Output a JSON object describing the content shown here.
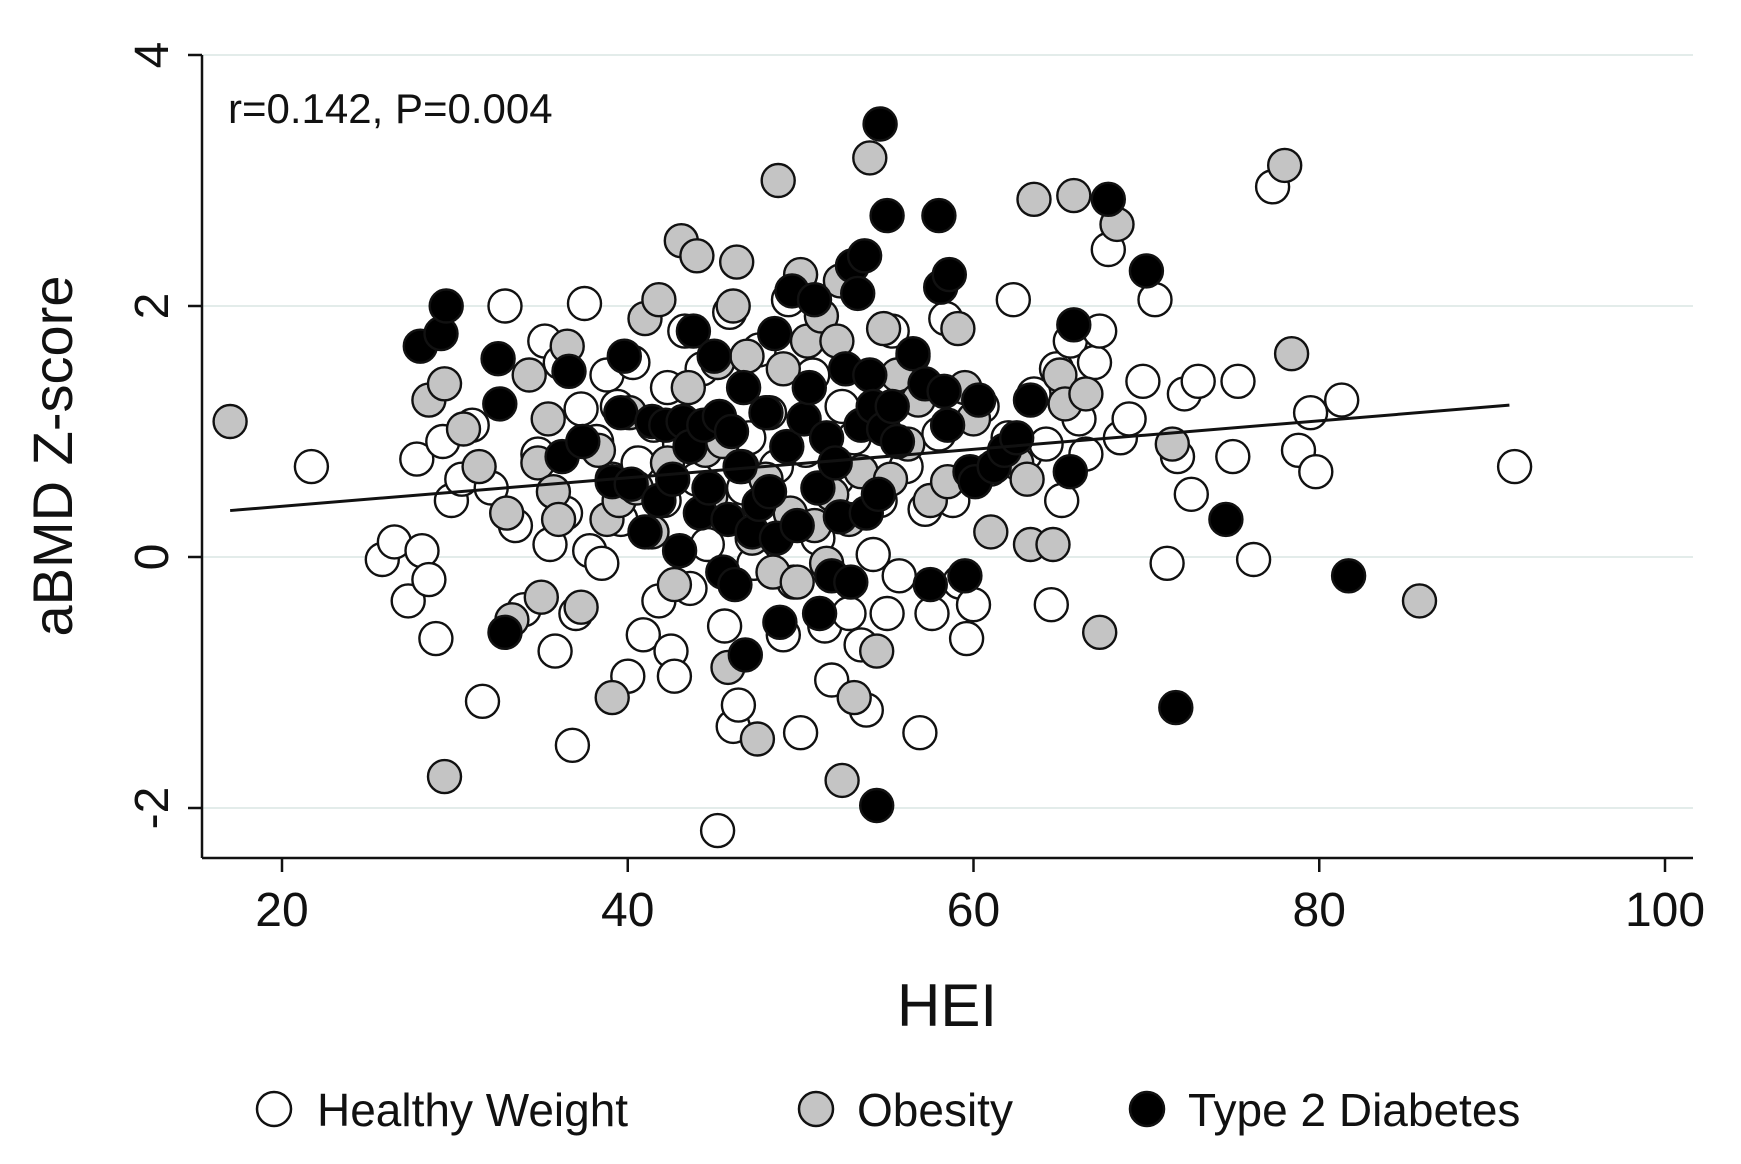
{
  "chart_data": {
    "type": "scatter",
    "xlabel": "HEI",
    "ylabel": "aBMD Z-score",
    "xlim": [
      16,
      102
    ],
    "ylim": [
      -2.4,
      4.1
    ],
    "xticks": [
      20,
      40,
      60,
      80,
      100
    ],
    "yticks": [
      -2,
      0,
      2,
      4
    ],
    "grid": true,
    "annotation": "r=0.142, P=0.004",
    "legend_position": "bottom",
    "trendline": {
      "x": [
        17,
        91
      ],
      "y": [
        0.37,
        1.21
      ]
    },
    "series": [
      {
        "name": "Healthy Weight",
        "color": "#ffffff",
        "points": [
          [
            21.7,
            0.72
          ],
          [
            25.8,
            -0.02
          ],
          [
            26.5,
            0.12
          ],
          [
            27.3,
            -0.35
          ],
          [
            27.8,
            0.78
          ],
          [
            28.1,
            0.05
          ],
          [
            28.5,
            -0.18
          ],
          [
            28.9,
            -0.65
          ],
          [
            29.3,
            0.92
          ],
          [
            29.8,
            0.45
          ],
          [
            30.4,
            0.62
          ],
          [
            31.0,
            1.05
          ],
          [
            31.6,
            -1.15
          ],
          [
            32.1,
            0.55
          ],
          [
            32.9,
            2.0
          ],
          [
            33.5,
            0.25
          ],
          [
            34.0,
            -0.42
          ],
          [
            34.8,
            0.82
          ],
          [
            35.2,
            1.72
          ],
          [
            35.5,
            0.1
          ],
          [
            35.8,
            -0.75
          ],
          [
            36.1,
            1.55
          ],
          [
            36.4,
            0.35
          ],
          [
            36.8,
            -1.5
          ],
          [
            37.0,
            -0.45
          ],
          [
            37.3,
            1.18
          ],
          [
            37.5,
            2.02
          ],
          [
            37.8,
            0.05
          ],
          [
            38.2,
            0.92
          ],
          [
            38.5,
            -0.05
          ],
          [
            38.8,
            1.45
          ],
          [
            39.1,
            0.62
          ],
          [
            39.4,
            1.2
          ],
          [
            39.6,
            0.3
          ],
          [
            40.0,
            -0.95
          ],
          [
            40.3,
            1.55
          ],
          [
            40.6,
            0.75
          ],
          [
            40.9,
            -0.62
          ],
          [
            41.2,
            0.2
          ],
          [
            41.5,
            1.05
          ],
          [
            41.8,
            -0.35
          ],
          [
            42.1,
            0.45
          ],
          [
            42.3,
            1.35
          ],
          [
            42.5,
            -0.75
          ],
          [
            42.7,
            -0.95
          ],
          [
            43.0,
            0.9
          ],
          [
            43.3,
            1.8
          ],
          [
            43.6,
            -0.25
          ],
          [
            44.0,
            0.62
          ],
          [
            44.3,
            1.5
          ],
          [
            44.6,
            0.1
          ],
          [
            44.9,
            1.05
          ],
          [
            45.2,
            -2.18
          ],
          [
            45.6,
            -0.55
          ],
          [
            45.9,
            1.95
          ],
          [
            46.1,
            -1.35
          ],
          [
            46.4,
            -1.18
          ],
          [
            46.7,
            0.55
          ],
          [
            47.0,
            0.95
          ],
          [
            47.3,
            -0.05
          ],
          [
            47.6,
            1.65
          ],
          [
            47.9,
            0.3
          ],
          [
            48.2,
            1.15
          ],
          [
            48.6,
            0.72
          ],
          [
            49.0,
            -0.62
          ],
          [
            49.3,
            2.05
          ],
          [
            49.6,
            -0.2
          ],
          [
            50.0,
            -1.4
          ],
          [
            50.3,
            0.85
          ],
          [
            50.7,
            1.45
          ],
          [
            51.0,
            0.15
          ],
          [
            51.4,
            -0.55
          ],
          [
            51.8,
            -0.98
          ],
          [
            52.1,
            0.62
          ],
          [
            52.4,
            1.2
          ],
          [
            52.8,
            -0.45
          ],
          [
            53.1,
            0.95
          ],
          [
            53.5,
            -0.7
          ],
          [
            53.8,
            -1.22
          ],
          [
            54.2,
            0.02
          ],
          [
            54.6,
            0.45
          ],
          [
            55.0,
            -0.45
          ],
          [
            55.3,
            1.8
          ],
          [
            55.7,
            -0.15
          ],
          [
            56.1,
            0.72
          ],
          [
            56.5,
            1.6
          ],
          [
            56.9,
            -1.4
          ],
          [
            57.2,
            0.38
          ],
          [
            57.6,
            -0.45
          ],
          [
            58.0,
            0.98
          ],
          [
            58.4,
            1.9
          ],
          [
            58.8,
            0.45
          ],
          [
            59.2,
            -0.2
          ],
          [
            59.6,
            -0.65
          ],
          [
            60.0,
            -0.38
          ],
          [
            60.5,
            1.2
          ],
          [
            61.0,
            0.7
          ],
          [
            62.0,
            0.95
          ],
          [
            62.3,
            2.05
          ],
          [
            63.0,
            0.82
          ],
          [
            63.5,
            1.3
          ],
          [
            64.2,
            0.9
          ],
          [
            64.5,
            -0.38
          ],
          [
            64.8,
            1.5
          ],
          [
            65.1,
            0.45
          ],
          [
            65.6,
            1.72
          ],
          [
            66.1,
            1.1
          ],
          [
            66.5,
            0.82
          ],
          [
            67.0,
            1.55
          ],
          [
            67.3,
            1.8
          ],
          [
            67.8,
            2.45
          ],
          [
            68.5,
            0.95
          ],
          [
            69.0,
            1.1
          ],
          [
            69.8,
            1.4
          ],
          [
            70.5,
            2.05
          ],
          [
            71.2,
            -0.05
          ],
          [
            71.8,
            0.8
          ],
          [
            72.2,
            1.3
          ],
          [
            72.6,
            0.5
          ],
          [
            73.0,
            1.4
          ],
          [
            75.0,
            0.8
          ],
          [
            75.3,
            1.4
          ],
          [
            76.2,
            -0.02
          ],
          [
            77.3,
            2.95
          ],
          [
            78.8,
            0.85
          ],
          [
            79.5,
            1.15
          ],
          [
            79.8,
            0.68
          ],
          [
            81.3,
            1.25
          ],
          [
            91.3,
            0.72
          ]
        ]
      },
      {
        "name": "Obesity",
        "color": "#c4c4c4",
        "points": [
          [
            17.0,
            1.08
          ],
          [
            28.5,
            1.25
          ],
          [
            29.4,
            1.38
          ],
          [
            29.4,
            -1.75
          ],
          [
            30.5,
            1.02
          ],
          [
            31.4,
            0.72
          ],
          [
            33.0,
            0.35
          ],
          [
            33.3,
            -0.5
          ],
          [
            34.3,
            1.45
          ],
          [
            34.8,
            0.75
          ],
          [
            35.0,
            -0.32
          ],
          [
            35.4,
            1.1
          ],
          [
            35.7,
            0.52
          ],
          [
            36.0,
            0.3
          ],
          [
            36.5,
            1.68
          ],
          [
            37.3,
            -0.4
          ],
          [
            38.3,
            0.85
          ],
          [
            38.8,
            0.3
          ],
          [
            39.1,
            -1.12
          ],
          [
            39.5,
            0.45
          ],
          [
            40.1,
            1.15
          ],
          [
            40.5,
            0.55
          ],
          [
            41.0,
            1.9
          ],
          [
            41.4,
            0.2
          ],
          [
            41.8,
            2.05
          ],
          [
            42.3,
            0.75
          ],
          [
            42.7,
            -0.22
          ],
          [
            43.1,
            2.52
          ],
          [
            43.5,
            1.35
          ],
          [
            44.0,
            2.4
          ],
          [
            44.5,
            0.85
          ],
          [
            44.8,
            0.48
          ],
          [
            45.2,
            1.55
          ],
          [
            45.5,
            0.92
          ],
          [
            45.8,
            -0.88
          ],
          [
            46.1,
            2.0
          ],
          [
            46.3,
            2.35
          ],
          [
            46.6,
            0.72
          ],
          [
            46.9,
            1.6
          ],
          [
            47.2,
            0.15
          ],
          [
            47.5,
            -1.45
          ],
          [
            48.0,
            0.62
          ],
          [
            48.4,
            -0.12
          ],
          [
            48.7,
            3.0
          ],
          [
            49.0,
            1.5
          ],
          [
            49.4,
            0.35
          ],
          [
            49.8,
            -0.2
          ],
          [
            50.0,
            2.25
          ],
          [
            50.4,
            1.72
          ],
          [
            50.8,
            0.25
          ],
          [
            51.2,
            1.92
          ],
          [
            51.5,
            -0.05
          ],
          [
            51.8,
            0.5
          ],
          [
            52.1,
            1.72
          ],
          [
            52.3,
            2.2
          ],
          [
            52.4,
            -1.78
          ],
          [
            52.8,
            0.3
          ],
          [
            53.1,
            -1.12
          ],
          [
            53.5,
            0.68
          ],
          [
            54.0,
            3.18
          ],
          [
            54.4,
            -0.75
          ],
          [
            54.8,
            1.82
          ],
          [
            55.2,
            0.62
          ],
          [
            55.6,
            1.45
          ],
          [
            56.2,
            0.9
          ],
          [
            56.8,
            1.25
          ],
          [
            57.5,
            0.45
          ],
          [
            58.5,
            0.6
          ],
          [
            59.1,
            1.82
          ],
          [
            59.5,
            1.35
          ],
          [
            60.0,
            1.1
          ],
          [
            61.0,
            0.2
          ],
          [
            62.5,
            0.75
          ],
          [
            63.1,
            0.62
          ],
          [
            63.3,
            0.1
          ],
          [
            63.5,
            2.85
          ],
          [
            64.6,
            0.1
          ],
          [
            65.0,
            1.45
          ],
          [
            65.3,
            1.22
          ],
          [
            65.8,
            2.88
          ],
          [
            66.5,
            1.3
          ],
          [
            67.3,
            -0.6
          ],
          [
            68.3,
            2.65
          ],
          [
            71.5,
            0.9
          ],
          [
            78.0,
            3.12
          ],
          [
            78.4,
            1.62
          ],
          [
            85.8,
            -0.35
          ]
        ]
      },
      {
        "name": "Type 2 Diabetes",
        "color": "#000000",
        "points": [
          [
            28.0,
            1.68
          ],
          [
            29.2,
            1.78
          ],
          [
            29.5,
            2.0
          ],
          [
            32.5,
            1.58
          ],
          [
            32.6,
            1.22
          ],
          [
            32.9,
            -0.6
          ],
          [
            36.2,
            0.8
          ],
          [
            36.6,
            1.48
          ],
          [
            37.4,
            0.92
          ],
          [
            39.1,
            0.6
          ],
          [
            39.6,
            1.15
          ],
          [
            39.8,
            1.6
          ],
          [
            40.2,
            0.58
          ],
          [
            41.0,
            0.2
          ],
          [
            41.4,
            1.08
          ],
          [
            41.8,
            0.45
          ],
          [
            42.2,
            1.05
          ],
          [
            42.6,
            0.62
          ],
          [
            43.0,
            0.05
          ],
          [
            43.2,
            1.08
          ],
          [
            43.6,
            0.88
          ],
          [
            43.8,
            1.8
          ],
          [
            44.2,
            0.35
          ],
          [
            44.4,
            1.05
          ],
          [
            44.7,
            0.55
          ],
          [
            45.0,
            1.6
          ],
          [
            45.3,
            1.12
          ],
          [
            45.5,
            -0.12
          ],
          [
            45.8,
            0.3
          ],
          [
            46.0,
            1.0
          ],
          [
            46.2,
            -0.22
          ],
          [
            46.5,
            0.72
          ],
          [
            46.7,
            1.35
          ],
          [
            46.8,
            -0.78
          ],
          [
            47.2,
            0.2
          ],
          [
            47.6,
            0.42
          ],
          [
            48.0,
            1.15
          ],
          [
            48.2,
            0.52
          ],
          [
            48.5,
            1.78
          ],
          [
            48.6,
            0.15
          ],
          [
            48.8,
            -0.52
          ],
          [
            49.2,
            0.88
          ],
          [
            49.5,
            2.12
          ],
          [
            49.8,
            0.25
          ],
          [
            50.2,
            1.1
          ],
          [
            50.5,
            1.35
          ],
          [
            50.8,
            2.05
          ],
          [
            51.0,
            0.55
          ],
          [
            51.1,
            -0.45
          ],
          [
            51.5,
            0.95
          ],
          [
            51.8,
            -0.15
          ],
          [
            52.0,
            0.75
          ],
          [
            52.3,
            0.32
          ],
          [
            52.6,
            1.5
          ],
          [
            52.9,
            -0.2
          ],
          [
            53.0,
            2.32
          ],
          [
            53.3,
            2.1
          ],
          [
            53.5,
            1.05
          ],
          [
            53.7,
            2.4
          ],
          [
            53.8,
            0.35
          ],
          [
            54.0,
            1.45
          ],
          [
            54.2,
            1.2
          ],
          [
            54.4,
            -1.98
          ],
          [
            54.5,
            0.5
          ],
          [
            54.6,
            3.45
          ],
          [
            54.8,
            1.02
          ],
          [
            55.0,
            2.72
          ],
          [
            55.3,
            1.2
          ],
          [
            55.6,
            0.92
          ],
          [
            56.5,
            1.62
          ],
          [
            57.2,
            1.38
          ],
          [
            57.5,
            -0.22
          ],
          [
            58.0,
            2.72
          ],
          [
            58.1,
            2.15
          ],
          [
            58.3,
            1.32
          ],
          [
            58.5,
            1.05
          ],
          [
            58.6,
            2.25
          ],
          [
            59.5,
            -0.15
          ],
          [
            59.8,
            0.68
          ],
          [
            60.1,
            0.6
          ],
          [
            60.3,
            1.25
          ],
          [
            61.2,
            0.72
          ],
          [
            61.8,
            0.85
          ],
          [
            62.5,
            0.95
          ],
          [
            63.3,
            1.25
          ],
          [
            65.6,
            0.68
          ],
          [
            65.8,
            1.85
          ],
          [
            67.8,
            2.85
          ],
          [
            70.0,
            2.28
          ],
          [
            71.7,
            -1.2
          ],
          [
            74.6,
            0.3
          ],
          [
            81.7,
            -0.15
          ]
        ]
      }
    ]
  }
}
